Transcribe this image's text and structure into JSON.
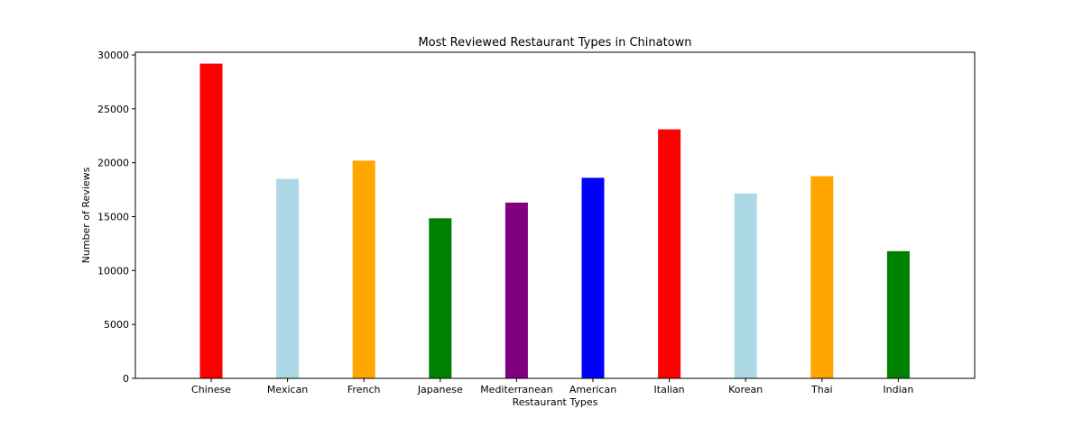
{
  "chart_data": {
    "type": "bar",
    "title": "Most Reviewed Restaurant Types in Chinatown",
    "xlabel": "Restaurant Types",
    "ylabel": "Number of Reviews",
    "categories": [
      "Chinese",
      "Mexican",
      "French",
      "Japanese",
      "Mediterranean",
      "American",
      "Italian",
      "Korean",
      "Thai",
      "Indian"
    ],
    "values": [
      29200,
      18500,
      20200,
      14850,
      16300,
      18600,
      23100,
      17150,
      18750,
      11800
    ],
    "colors": [
      "#ff0000",
      "#add8e6",
      "#ffa500",
      "#008000",
      "#800080",
      "#0000ff",
      "#ff0000",
      "#add8e6",
      "#ffa500",
      "#008000"
    ],
    "ylim": [
      0,
      30000
    ],
    "yticks": [
      0,
      5000,
      10000,
      15000,
      20000,
      25000,
      30000
    ],
    "grid": false,
    "legend": "none"
  }
}
